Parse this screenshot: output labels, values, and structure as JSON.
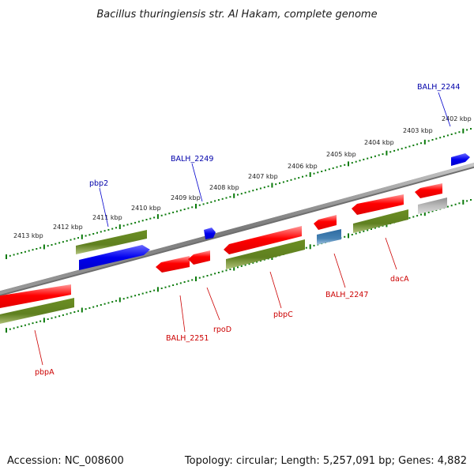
{
  "title": "Bacillus thuringiensis str. Al Hakam, complete genome",
  "footer": {
    "accession": "Accession: NC_008600",
    "summary": "Topology: circular; Length: 5,257,091 bp; Genes: 4,882"
  },
  "colors": {
    "cds_red": "#ff0000",
    "gene_green": "#6b8e23",
    "blue": "#0000cc",
    "steel_blue": "#4682b4",
    "gray_gene": "#bbbbbb",
    "backbone": "#808080",
    "tick_green": "#0a7a0a",
    "label_red": "#cc0000",
    "label_blue": "#0000aa"
  },
  "scale_labels": [
    "2413 kbp",
    "2412 kbp",
    "2411 kbp",
    "2410 kbp",
    "2409 kbp",
    "2408 kbp",
    "2407 kbp",
    "2406 kbp",
    "2405 kbp",
    "2404 kbp",
    "2403 kbp",
    "2402 kbp"
  ],
  "gene_labels": {
    "top": [
      "pbp2",
      "BALH_2249",
      "BALH_2244"
    ],
    "bottom": [
      "pbpA",
      "BALH_2251",
      "rpoD",
      "pbpC",
      "BALH_2247",
      "dacA"
    ]
  }
}
